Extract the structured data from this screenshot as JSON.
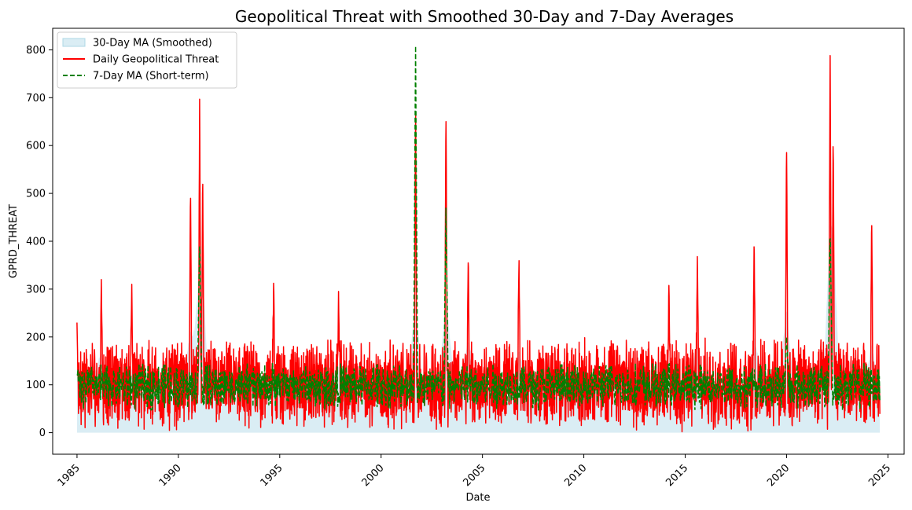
{
  "chart_data": {
    "type": "line",
    "title": "Geopolitical Threat with Smoothed 30-Day and 7-Day Averages",
    "xlabel": "Date",
    "ylabel": "GPRD_THREAT",
    "xlim": [
      1983.8,
      2025.8
    ],
    "ylim": [
      -45,
      845
    ],
    "x_ticks": [
      "1985",
      "1990",
      "1995",
      "2000",
      "2005",
      "2010",
      "2015",
      "2020",
      "2025"
    ],
    "y_ticks": [
      "0",
      "100",
      "200",
      "300",
      "400",
      "500",
      "600",
      "700",
      "800"
    ],
    "legend_position": "upper-left",
    "grid": false,
    "series": [
      {
        "name": "30-Day MA (Smoothed)",
        "kind": "area",
        "color": "#add8e6",
        "x_range": [
          1985,
          2024.6
        ],
        "baseline": 0
      },
      {
        "name": "Daily Geopolitical Threat",
        "kind": "line",
        "color": "#ff0000",
        "x_range": [
          1985,
          2024.6
        ],
        "typical_low": 30,
        "typical_high": 170,
        "peaks": [
          {
            "x": 1985.0,
            "y": 230
          },
          {
            "x": 1986.2,
            "y": 320
          },
          {
            "x": 1987.7,
            "y": 310
          },
          {
            "x": 1990.6,
            "y": 520
          },
          {
            "x": 1991.05,
            "y": 718
          },
          {
            "x": 1991.2,
            "y": 548
          },
          {
            "x": 1994.7,
            "y": 330
          },
          {
            "x": 1997.9,
            "y": 295
          },
          {
            "x": 2001.7,
            "y": 700
          },
          {
            "x": 2003.2,
            "y": 690
          },
          {
            "x": 2004.3,
            "y": 375
          },
          {
            "x": 2006.8,
            "y": 380
          },
          {
            "x": 2014.2,
            "y": 320
          },
          {
            "x": 2015.6,
            "y": 368
          },
          {
            "x": 2018.4,
            "y": 413
          },
          {
            "x": 2020.0,
            "y": 622
          },
          {
            "x": 2022.15,
            "y": 810
          },
          {
            "x": 2022.3,
            "y": 633
          },
          {
            "x": 2024.2,
            "y": 453
          }
        ]
      },
      {
        "name": "7-Day MA (Short-term)",
        "kind": "line",
        "style": "dashed",
        "color": "#008000",
        "x_range": [
          1985,
          2024.6
        ],
        "typical_low": 60,
        "typical_high": 135,
        "peaks": [
          {
            "x": 1991.05,
            "y": 420
          },
          {
            "x": 2001.7,
            "y": 808
          },
          {
            "x": 2003.2,
            "y": 470
          },
          {
            "x": 2020.0,
            "y": 200
          },
          {
            "x": 2022.15,
            "y": 440
          }
        ]
      }
    ]
  }
}
